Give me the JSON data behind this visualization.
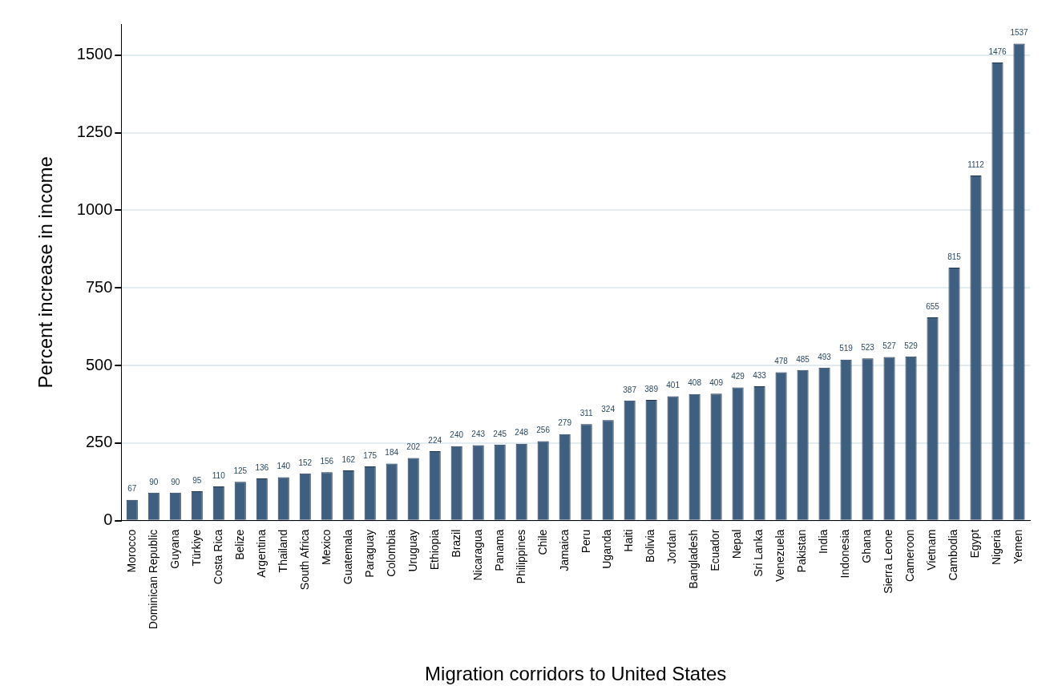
{
  "chart_data": {
    "type": "bar",
    "xlabel": "Migration corridors to United States",
    "ylabel": "Percent increase in income",
    "categories": [
      "Morocco",
      "Dominican Republic",
      "Guyana",
      "Türkiye",
      "Costa Rica",
      "Belize",
      "Argentina",
      "Thailand",
      "South Africa",
      "Mexico",
      "Guatemala",
      "Paraguay",
      "Colombia",
      "Uruguay",
      "Ethiopia",
      "Brazil",
      "Nicaragua",
      "Panama",
      "Philippines",
      "Chile",
      "Jamaica",
      "Peru",
      "Uganda",
      "Haiti",
      "Bolivia",
      "Jordan",
      "Bangladesh",
      "Ecuador",
      "Nepal",
      "Sri Lanka",
      "Venezuela",
      "Pakistan",
      "India",
      "Indonesia",
      "Ghana",
      "Sierra Leone",
      "Cameroon",
      "Vietnam",
      "Cambodia",
      "Egypt",
      "Nigeria",
      "Yemen"
    ],
    "values": [
      67,
      90,
      90,
      95,
      110,
      125,
      136,
      140,
      152,
      156,
      162,
      175,
      184,
      202,
      224,
      240,
      243,
      245,
      248,
      256,
      279,
      311,
      324,
      387,
      389,
      401,
      408,
      409,
      429,
      433,
      478,
      485,
      493,
      519,
      523,
      527,
      529,
      655,
      815,
      1112,
      1476,
      1537
    ],
    "color": "#3e5f80",
    "ylim": [
      0,
      1600
    ],
    "yticks": [
      0,
      250,
      500,
      750,
      1000,
      1250,
      1500
    ],
    "grid": "y",
    "data_labels": true,
    "legend": false
  }
}
